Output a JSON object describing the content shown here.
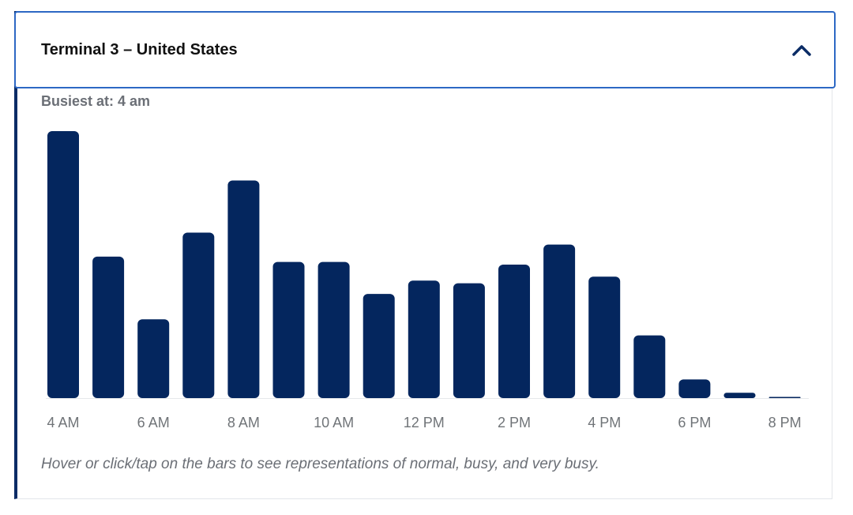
{
  "header": {
    "title": "Terminal 3 – United States",
    "toggle_icon": "chevron-up-icon"
  },
  "busiest": "Busiest at: 4 am",
  "hint": "Hover or click/tap on the bars to see representations of normal, busy, and very busy.",
  "colors": {
    "bar": "#04265e",
    "accent_border": "#2d68c4",
    "left_rule": "#0b2c66",
    "muted_text": "#6b6f76"
  },
  "chart_data": {
    "type": "bar",
    "categories": [
      "4 AM",
      "5 AM",
      "6 AM",
      "7 AM",
      "8 AM",
      "9 AM",
      "10 AM",
      "11 AM",
      "12 PM",
      "1 PM",
      "2 PM",
      "3 PM",
      "4 PM",
      "5 PM",
      "6 PM",
      "7 PM",
      "8 PM"
    ],
    "values": [
      100,
      53,
      29.5,
      62,
      81.5,
      51,
      51,
      39,
      44,
      43,
      50,
      57.5,
      45.5,
      23.5,
      7,
      2,
      0.3
    ],
    "tick_labels": [
      "4 AM",
      "6 AM",
      "8 AM",
      "10 AM",
      "12 PM",
      "2 PM",
      "4 PM",
      "6 PM",
      "8 PM"
    ],
    "ylim": [
      0,
      100
    ],
    "grid": false,
    "legend": "none"
  }
}
